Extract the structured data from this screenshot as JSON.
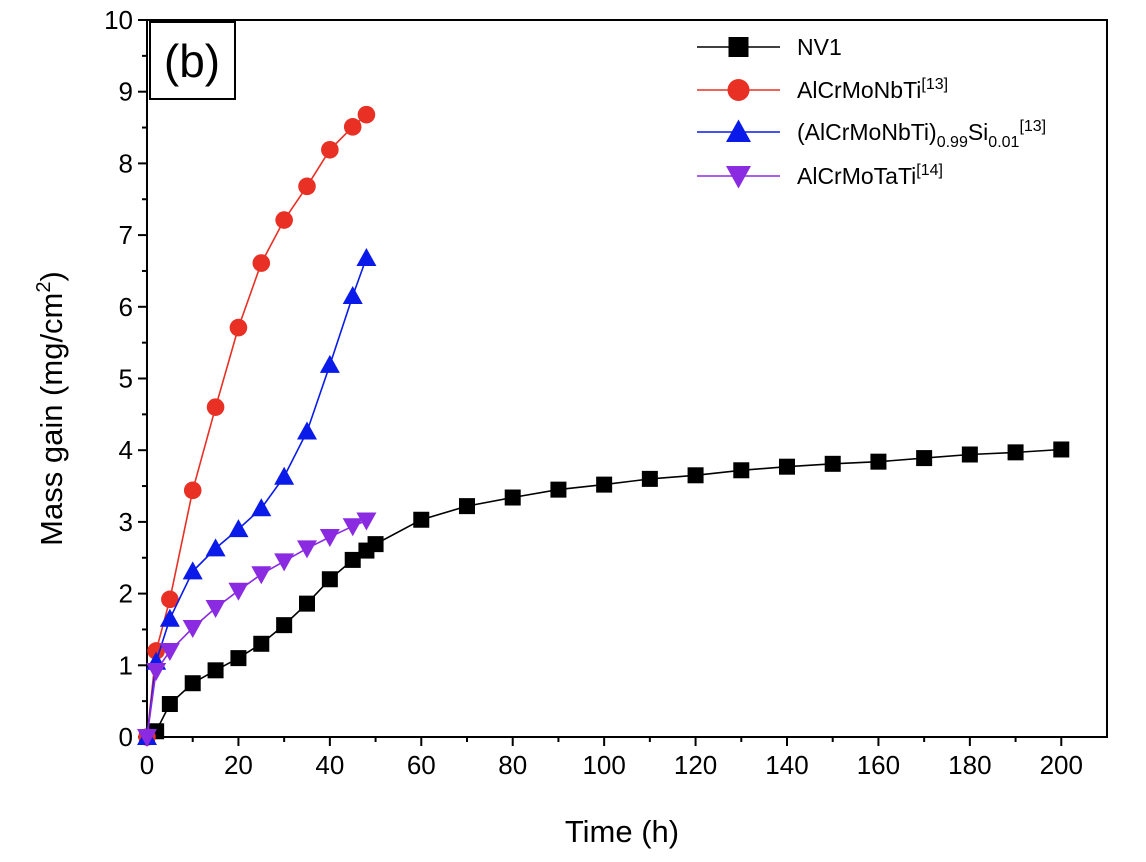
{
  "chart_data": {
    "type": "line",
    "panel_label": "(b)",
    "xlabel": "Time (h)",
    "ylabel_main": "Mass gain (mg/cm",
    "ylabel_sup": "2",
    "ylabel_tail": ")",
    "xlim": [
      0,
      210
    ],
    "ylim": [
      0,
      10
    ],
    "x_ticks": [
      0,
      20,
      40,
      60,
      80,
      100,
      120,
      140,
      160,
      180,
      200
    ],
    "y_ticks": [
      0,
      1,
      2,
      3,
      4,
      5,
      6,
      7,
      8,
      9,
      10
    ],
    "grid": false,
    "legend_position": "top-right",
    "series": [
      {
        "name": "NV1",
        "legend": [
          {
            "t": "NV1"
          }
        ],
        "color": "#000000",
        "marker": "square",
        "x": [
          0,
          2,
          5,
          10,
          15,
          20,
          25,
          30,
          35,
          40,
          45,
          48,
          50,
          60,
          70,
          80,
          90,
          100,
          110,
          120,
          130,
          140,
          150,
          160,
          170,
          180,
          190,
          200
        ],
        "y": [
          0,
          0.08,
          0.46,
          0.75,
          0.93,
          1.1,
          1.3,
          1.56,
          1.86,
          2.2,
          2.47,
          2.6,
          2.69,
          3.03,
          3.22,
          3.34,
          3.45,
          3.52,
          3.6,
          3.65,
          3.72,
          3.77,
          3.81,
          3.84,
          3.89,
          3.94,
          3.97,
          4.01
        ]
      },
      {
        "name": "AlCrMoNbTi[13]",
        "legend": [
          {
            "t": "AlCrMoNbTi"
          },
          {
            "t": "[13]",
            "s": "sup"
          }
        ],
        "color": "#e83025",
        "marker": "circle",
        "x": [
          0,
          2,
          5,
          10,
          15,
          20,
          25,
          30,
          35,
          40,
          45,
          48
        ],
        "y": [
          0,
          1.2,
          1.92,
          3.44,
          4.6,
          5.71,
          6.61,
          7.21,
          7.68,
          8.19,
          8.51,
          8.68
        ]
      },
      {
        "name": "(AlCrMoNbTi)0.99Si0.01[13]",
        "legend": [
          {
            "t": "(AlCrMoNbTi)"
          },
          {
            "t": "0.99",
            "s": "sub"
          },
          {
            "t": "Si"
          },
          {
            "t": "0.01",
            "s": "sub"
          },
          {
            "t": "[13]",
            "s": "sup"
          }
        ],
        "color": "#0a1ae8",
        "marker": "triangle-up",
        "x": [
          0,
          2,
          5,
          10,
          15,
          20,
          25,
          30,
          35,
          40,
          45,
          48
        ],
        "y": [
          0,
          1.05,
          1.65,
          2.31,
          2.63,
          2.9,
          3.19,
          3.63,
          4.26,
          5.19,
          6.15,
          6.68
        ]
      },
      {
        "name": "AlCrMoTaTi[14]",
        "legend": [
          {
            "t": "AlCrMoTaTi"
          },
          {
            "t": "[14]",
            "s": "sup"
          }
        ],
        "color": "#8a2be2",
        "marker": "triangle-down",
        "x": [
          0,
          2,
          5,
          10,
          15,
          20,
          25,
          30,
          35,
          40,
          45,
          48
        ],
        "y": [
          0,
          0.92,
          1.2,
          1.52,
          1.8,
          2.04,
          2.27,
          2.45,
          2.63,
          2.79,
          2.94,
          3.02
        ]
      }
    ]
  }
}
